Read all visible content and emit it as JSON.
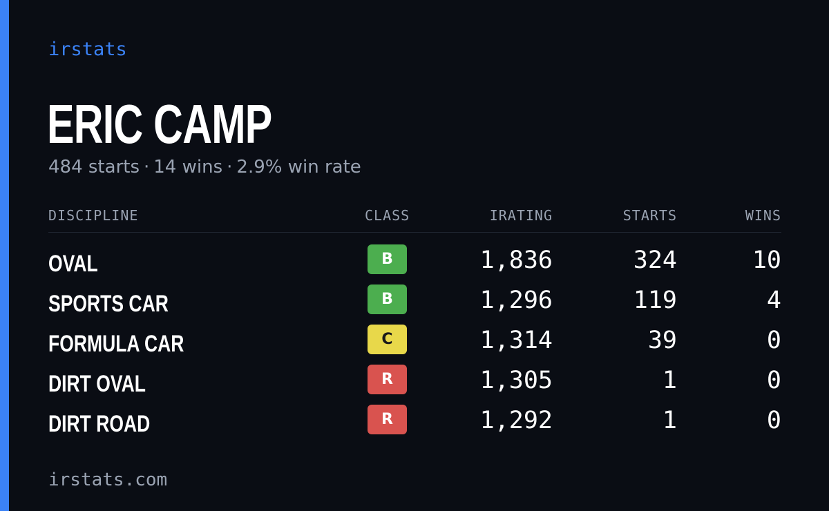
{
  "brand": "irstats",
  "driver": {
    "name": "ERIC CAMP"
  },
  "summary": {
    "starts": "484 starts",
    "wins": "14 wins",
    "win_rate": "2.9% win rate",
    "separator": "·"
  },
  "table": {
    "headers": {
      "discipline": "DISCIPLINE",
      "class": "CLASS",
      "irating": "IRATING",
      "starts": "STARTS",
      "wins": "WINS"
    },
    "rows": [
      {
        "discipline": "OVAL",
        "class": "B",
        "irating": "1,836",
        "starts": "324",
        "wins": "10"
      },
      {
        "discipline": "SPORTS CAR",
        "class": "B",
        "irating": "1,296",
        "starts": "119",
        "wins": "4"
      },
      {
        "discipline": "FORMULA CAR",
        "class": "C",
        "irating": "1,314",
        "starts": "39",
        "wins": "0"
      },
      {
        "discipline": "DIRT OVAL",
        "class": "R",
        "irating": "1,305",
        "starts": "1",
        "wins": "0"
      },
      {
        "discipline": "DIRT ROAD",
        "class": "R",
        "irating": "1,292",
        "starts": "1",
        "wins": "0"
      }
    ]
  },
  "class_colors": {
    "B": "#4cae4f",
    "C": "#e8d84a",
    "R": "#d9534f"
  },
  "colors": {
    "accent": "#3b82f6",
    "background": "#0a0d14",
    "muted_text": "#9aa3b2"
  },
  "footer": "irstats.com"
}
